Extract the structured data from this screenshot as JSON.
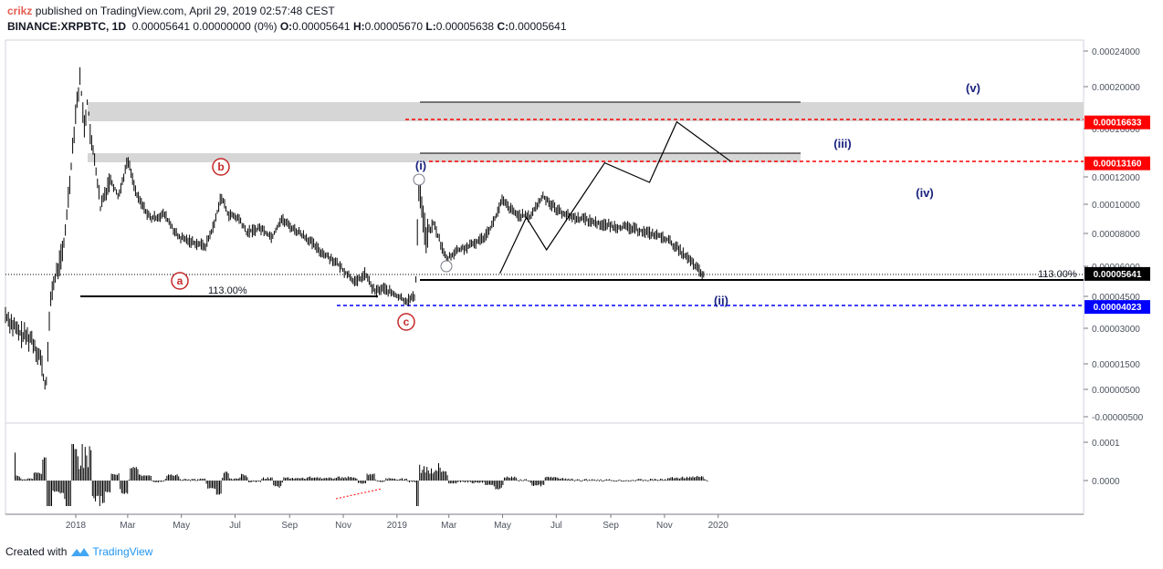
{
  "header": {
    "author": "crikz",
    "published": "published on TradingView.com, April 29, 2019 02:57:48 CEST",
    "symbol": "BINANCE:XRPBTC, 1D",
    "change": "0.00005641 0.00000000 (0%)",
    "o_label": "O:",
    "o_value": "0.00005641",
    "h_label": "H:",
    "h_value": "0.00005670",
    "l_label": "L:",
    "l_value": "0.00005638",
    "c_label": "C:",
    "c_value": "0.00005641"
  },
  "footer": {
    "created_with": "Created with",
    "brand": "TradingView"
  },
  "colors": {
    "red": "#ff0000",
    "blue": "#0000ff",
    "navy": "#1a237e",
    "darkred": "#c62828",
    "zone": "#d6d6d6",
    "axis": "#787b86"
  },
  "chart_data": {
    "type": "candlestick",
    "price_axis_ticks": [
      "0.00024000",
      "0.00020000",
      "0.00016000",
      "0.00012000",
      "0.00010000",
      "0.00008000",
      "0.00006000",
      "0.00004500",
      "0.00003000",
      "0.00001500",
      "0.00000500",
      "-0.00000500"
    ],
    "time_axis_ticks": [
      "2018",
      "Mar",
      "May",
      "Jul",
      "Sep",
      "Nov",
      "2019",
      "Mar",
      "May",
      "Jul",
      "Sep",
      "Nov",
      "2020"
    ],
    "price_labels": [
      {
        "text": "0.00016633",
        "color": "#ff0000"
      },
      {
        "text": "0.00013160",
        "color": "#ff0000"
      },
      {
        "text": "0.00005641",
        "color": "#000000"
      },
      {
        "text": "0.00004023",
        "color": "#0000ff"
      }
    ],
    "wave_labels": {
      "a": "a",
      "b": "b",
      "c": "c",
      "i": "(i)",
      "ii": "(ii)",
      "iii": "(iii)",
      "iv": "(iv)",
      "v": "(v)"
    },
    "fib_labels": {
      "left": "113.00%",
      "right": "113.00%"
    },
    "projection": [
      {
        "date": "2019-04-28",
        "price": 5.641e-05
      },
      {
        "date": "2019-05-28",
        "price": 9.1e-05
      },
      {
        "date": "2019-06-20",
        "price": 7e-05
      },
      {
        "date": "2019-08-25",
        "price": 0.0001316
      },
      {
        "date": "2019-10-15",
        "price": 0.000116
      },
      {
        "date": "2019-11-15",
        "price": 0.00016633
      },
      {
        "date": "2020-01-15",
        "price": 0.000133
      }
    ],
    "oscillator_ticks": [
      "0.0001",
      "0.0000"
    ]
  }
}
